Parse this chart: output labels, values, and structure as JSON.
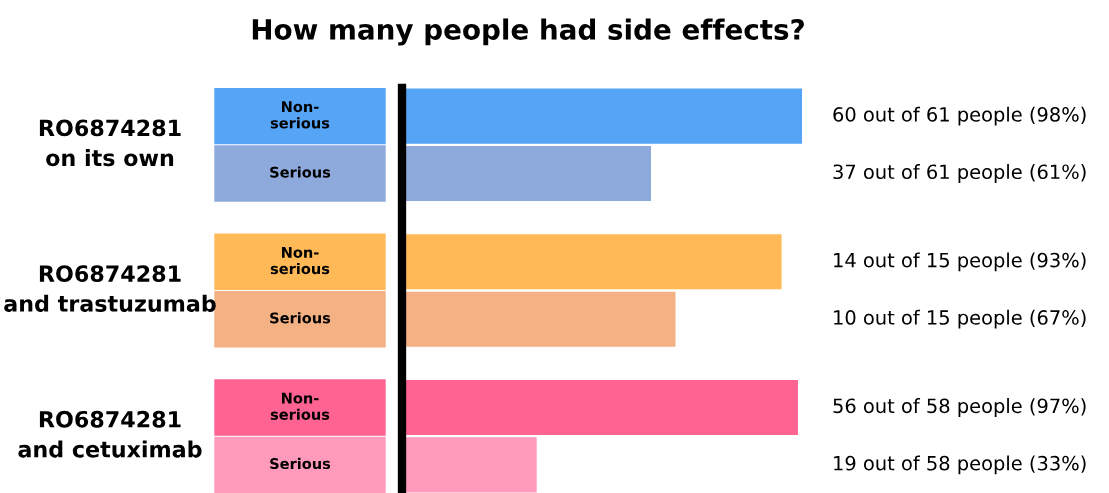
{
  "chart_data": {
    "type": "bar",
    "orientation": "horizontal",
    "title": "How many people had side effects?",
    "categories": [
      "Non-\nserious",
      "Serious",
      "Non-\nserious",
      "Serious",
      "Non-\nserious",
      "Serious"
    ],
    "values": [
      98,
      61,
      93,
      67,
      97,
      33
    ],
    "colors": [
      "#55a4f6",
      "#8eaadc",
      "#ffb957",
      "#f4b183",
      "#ff6392",
      "#ff9abb"
    ],
    "value_labels": [
      "60 out of 61 people (98%)",
      "37 out of 61 people (61%)",
      "14 out of 15 people (93%)",
      "10 out of 15 people (67%)",
      "56 out of 58 people (97%)",
      "19 out of 58 people (33%)"
    ],
    "annotations": [
      "RO6874281\non its own",
      "RO6874281\nand trastuzumab",
      "RO6874281\nand cetuximab"
    ],
    "tick_labels": false
  }
}
